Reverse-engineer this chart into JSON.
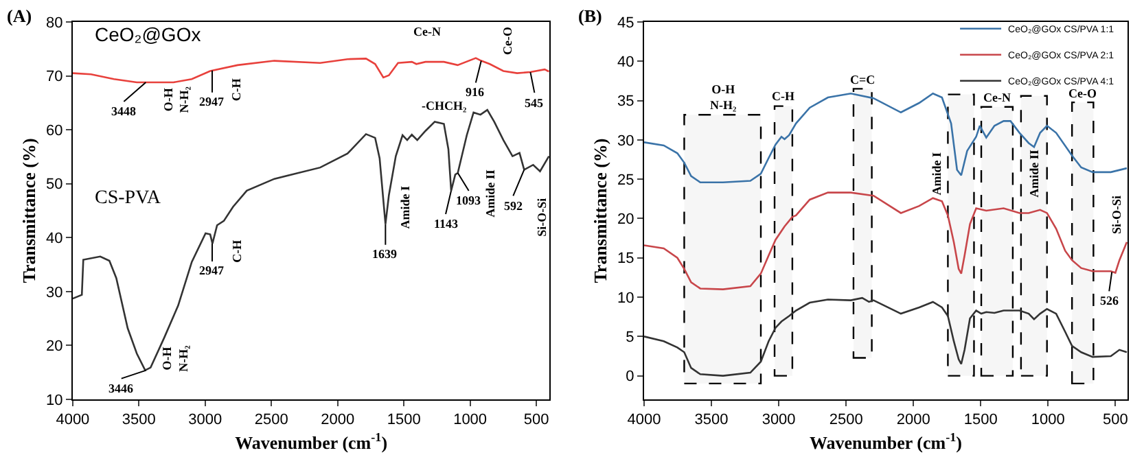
{
  "chart_data": [
    {
      "type": "line",
      "title": "(A)",
      "xlabel": "Wavenumber (cm$^{-1}$)",
      "ylabel": "Transmittance (%)",
      "xlim": [
        4000,
        400
      ],
      "xticks": [
        4000,
        3500,
        3000,
        2500,
        2000,
        1500,
        1000,
        500
      ],
      "ylim": [
        10,
        80
      ],
      "yticks": [
        10,
        20,
        30,
        40,
        50,
        60,
        70,
        80
      ],
      "grid": false,
      "legend": false,
      "series": [
        {
          "name": "CeO₂@GOx",
          "color": "#e8413c",
          "x": [
            4000,
            3862,
            3689,
            3516,
            3239,
            3101,
            2962,
            2755,
            2478,
            2132,
            1925,
            1786,
            1717,
            1655,
            1613,
            1544,
            1440,
            1406,
            1337,
            1198,
            1094,
            957,
            916,
            852,
            749,
            645,
            545,
            437,
            405
          ],
          "values": [
            70.5,
            70.3,
            69.4,
            68.8,
            68.8,
            69.4,
            70.9,
            72.0,
            72.8,
            72.4,
            73.1,
            73.2,
            72.2,
            69.7,
            70.1,
            72.4,
            72.6,
            72.2,
            72.6,
            72.6,
            72.0,
            73.3,
            72.8,
            72.2,
            70.9,
            70.5,
            70.7,
            71.2,
            70.8
          ]
        },
        {
          "name": "CS-PVA",
          "color": "#333333",
          "x": [
            4000,
            3931,
            3920,
            3792,
            3723,
            3671,
            3585,
            3516,
            3453,
            3412,
            3308,
            3204,
            3101,
            2997,
            2962,
            2945,
            2910,
            2859,
            2790,
            2686,
            2478,
            2132,
            1925,
            1786,
            1717,
            1683,
            1639,
            1613,
            1561,
            1510,
            1475,
            1440,
            1399,
            1337,
            1267,
            1198,
            1164,
            1143,
            1112,
            1093,
            1025,
            974,
            922,
            870,
            818,
            749,
            680,
            627,
            592,
            524,
            472,
            405
          ],
          "values": [
            28.7,
            29.4,
            35.9,
            36.5,
            35.7,
            32.5,
            23.2,
            18.5,
            15.4,
            15.9,
            21.5,
            27.4,
            35.5,
            40.8,
            40.6,
            38.9,
            42.3,
            43.1,
            45.7,
            48.7,
            50.9,
            53.0,
            55.6,
            59.2,
            58.5,
            54.7,
            42.5,
            47.9,
            55.1,
            59.0,
            58.1,
            59.1,
            58.1,
            59.8,
            61.5,
            61.1,
            56.4,
            48.7,
            51.7,
            52.0,
            59.0,
            63.2,
            62.8,
            63.7,
            61.5,
            58.1,
            55.1,
            55.7,
            52.6,
            53.5,
            52.3,
            55.1
          ]
        }
      ],
      "annotations": [
        {
          "text": "3448",
          "x": 3448,
          "y": 68.8
        },
        "O-H\nN-H₂",
        {
          "text": "2947",
          "x": 2947,
          "y": 71.0
        },
        "C-H",
        "Ce-N",
        {
          "text": "916",
          "x": 916,
          "y": 72.8
        },
        "Ce-O",
        {
          "text": "545",
          "x": 545,
          "y": 70.7
        },
        "-CHCH₂",
        "Amide I",
        {
          "text": "1639",
          "x": 1639,
          "y": 42.5
        },
        {
          "text": "1143",
          "x": 1143,
          "y": 48.7
        },
        {
          "text": "1093",
          "x": 1093,
          "y": 52.0
        },
        "Amide II",
        {
          "text": "592",
          "x": 592,
          "y": 52.6
        },
        "Si-O-Si",
        {
          "text": "3446",
          "x": 3446,
          "y": 15.4
        },
        "O-H\nN-H₂",
        {
          "text": "2947",
          "x": 2947,
          "y": 38.9
        },
        "C-H"
      ]
    },
    {
      "type": "line",
      "title": "(B)",
      "xlabel": "Wavenumber (cm$^{-1}$)",
      "ylabel": "Transmittance (%)",
      "xlim": [
        4000,
        410
      ],
      "xticks": [
        4000,
        3500,
        3000,
        2500,
        2000,
        1500,
        1000,
        500
      ],
      "ylim": [
        -3,
        45
      ],
      "yticks": [
        0,
        5,
        10,
        15,
        20,
        25,
        30,
        35,
        40,
        45
      ],
      "grid": false,
      "legend": "top right",
      "series": [
        {
          "name": "CeO₂@GOx CS/PVA 1:1",
          "color": "#3a73a8",
          "x": [
            4000,
            3854,
            3753,
            3702,
            3651,
            3583,
            3414,
            3211,
            3133,
            3075,
            3024,
            2980,
            2957,
            2923,
            2872,
            2770,
            2635,
            2465,
            2296,
            2093,
            1957,
            1855,
            1788,
            1720,
            1676,
            1645,
            1601,
            1534,
            1507,
            1459,
            1398,
            1330,
            1279,
            1212,
            1144,
            1104,
            1059,
            1008,
            940,
            822,
            754,
            669,
            534,
            415
          ],
          "values": [
            29.7,
            29.3,
            28.3,
            27.1,
            25.4,
            24.6,
            24.6,
            24.8,
            25.7,
            27.7,
            29.4,
            30.4,
            30.1,
            30.6,
            32.1,
            34.1,
            35.4,
            35.9,
            35.3,
            33.5,
            34.7,
            35.9,
            35.4,
            32.1,
            26.2,
            25.5,
            28.6,
            30.4,
            31.8,
            30.3,
            31.8,
            32.4,
            32.4,
            30.9,
            29.6,
            29.1,
            30.9,
            31.8,
            30.9,
            28.0,
            26.5,
            25.9,
            25.9,
            26.4
          ]
        },
        {
          "name": "CeO₂@GOx CS/PVA 2:1",
          "color": "#c8464a",
          "x": [
            4000,
            3854,
            3753,
            3702,
            3651,
            3583,
            3414,
            3211,
            3133,
            3075,
            3024,
            2957,
            2899,
            2872,
            2770,
            2635,
            2465,
            2296,
            2093,
            1957,
            1855,
            1788,
            1744,
            1700,
            1664,
            1645,
            1620,
            1580,
            1534,
            1459,
            1330,
            1212,
            1144,
            1059,
            1008,
            940,
            873,
            822,
            754,
            669,
            534,
            500,
            470,
            415
          ],
          "values": [
            16.6,
            16.2,
            15.0,
            13.6,
            11.9,
            11.1,
            11.0,
            11.4,
            13.0,
            15.3,
            17.3,
            19.0,
            20.2,
            20.4,
            22.4,
            23.3,
            23.3,
            22.9,
            20.7,
            21.6,
            22.6,
            22.2,
            20.4,
            17.0,
            13.6,
            13.0,
            15.3,
            19.3,
            21.3,
            21.0,
            21.3,
            20.7,
            20.7,
            21.1,
            20.7,
            18.7,
            15.9,
            14.7,
            13.7,
            13.3,
            13.3,
            13.1,
            14.7,
            17.0
          ]
        },
        {
          "name": "CeO₂@GOx CS/PVA 4:1",
          "color": "#333333",
          "x": [
            4000,
            3854,
            3753,
            3702,
            3651,
            3583,
            3414,
            3211,
            3133,
            3075,
            3024,
            2980,
            2923,
            2872,
            2770,
            2635,
            2465,
            2380,
            2330,
            2296,
            2093,
            1957,
            1855,
            1788,
            1744,
            1700,
            1664,
            1645,
            1620,
            1580,
            1534,
            1496,
            1459,
            1398,
            1330,
            1212,
            1144,
            1104,
            1059,
            1008,
            940,
            873,
            822,
            754,
            669,
            534,
            470,
            415
          ],
          "values": [
            5.0,
            4.4,
            3.6,
            3.0,
            1.0,
            0.2,
            0.0,
            0.4,
            1.8,
            4.4,
            6.1,
            6.9,
            7.6,
            8.3,
            9.3,
            9.7,
            9.6,
            9.9,
            9.4,
            9.6,
            7.9,
            8.7,
            9.4,
            8.7,
            7.6,
            4.4,
            2.1,
            1.5,
            3.3,
            7.3,
            8.3,
            7.9,
            8.1,
            8.0,
            8.3,
            8.3,
            7.9,
            7.2,
            7.9,
            8.5,
            7.9,
            5.6,
            3.8,
            3.0,
            2.4,
            2.5,
            3.3,
            3.0
          ]
        }
      ],
      "bands": [
        {
          "axis": "x",
          "from": 3702,
          "to": 3133,
          "label": "O-H\nN-H₂"
        },
        {
          "axis": "x",
          "from": 3031,
          "to": 2899,
          "label": "C-H"
        },
        {
          "axis": "x",
          "from": 2445,
          "to": 2309,
          "label": "C=C"
        },
        {
          "axis": "x",
          "from": 1744,
          "to": 1550,
          "label": "Amide I"
        },
        {
          "axis": "x",
          "from": 1496,
          "to": 1262,
          "label": "Ce-N"
        },
        {
          "axis": "x",
          "from": 1201,
          "to": 1008,
          "label": "Amide II"
        },
        {
          "axis": "x",
          "from": 822,
          "to": 663,
          "label": "Ce-O"
        }
      ],
      "annotations": [
        "Si-O-Si",
        {
          "text": "526",
          "x": 526,
          "y": 13.2
        }
      ]
    }
  ]
}
